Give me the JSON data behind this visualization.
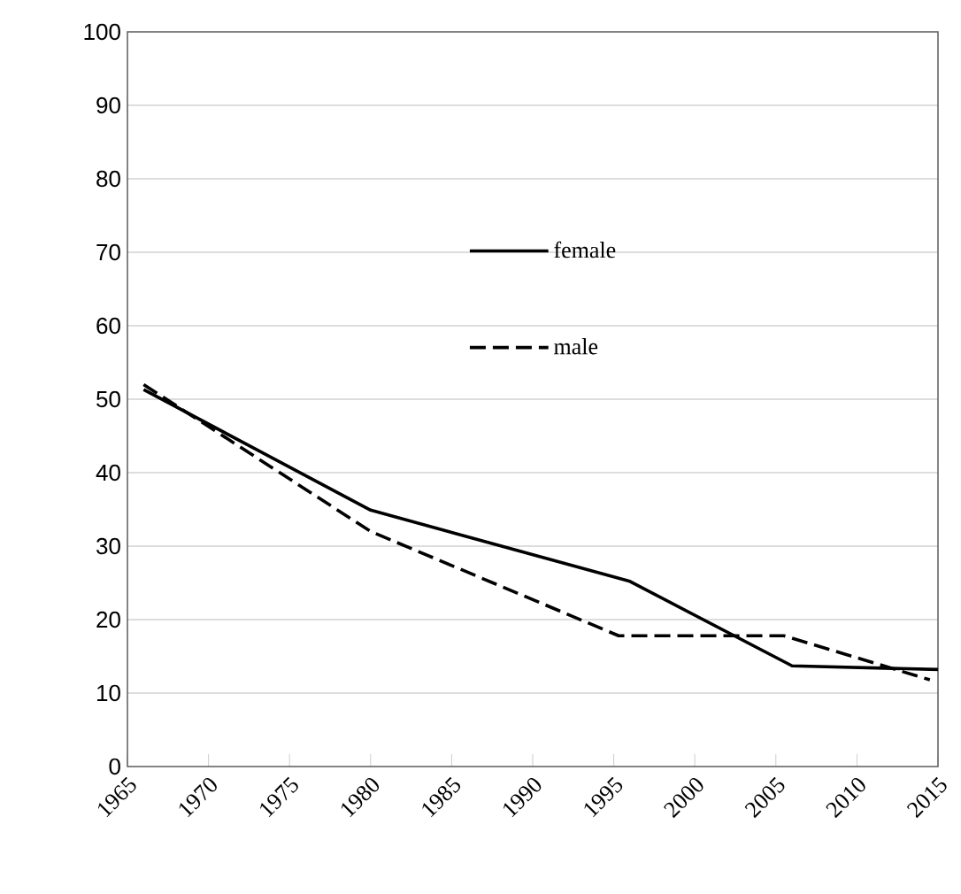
{
  "chart_data": {
    "type": "line",
    "xlim": [
      1965,
      2015
    ],
    "xticks": [
      1965,
      1970,
      1975,
      1980,
      1985,
      1990,
      1995,
      2000,
      2005,
      2010,
      2015
    ],
    "ylim": [
      0,
      100
    ],
    "yticks": [
      0,
      10,
      20,
      30,
      40,
      50,
      60,
      70,
      80,
      90,
      100
    ],
    "grid": "y",
    "legend": "top right",
    "series": [
      {
        "name": "female",
        "color": "#000000",
        "line_style": "solid",
        "x": [
          1966,
          1980,
          1996,
          2006,
          2015
        ],
        "values": [
          51.3,
          34.9,
          25.2,
          13.7,
          13.2
        ]
      },
      {
        "name": "male",
        "color": "#000000",
        "line_style": "dashed",
        "x": [
          1966,
          1980,
          1995.3,
          2005.5,
          2014.5
        ],
        "values": [
          52,
          32,
          17.8,
          17.8,
          11.8
        ]
      }
    ]
  }
}
